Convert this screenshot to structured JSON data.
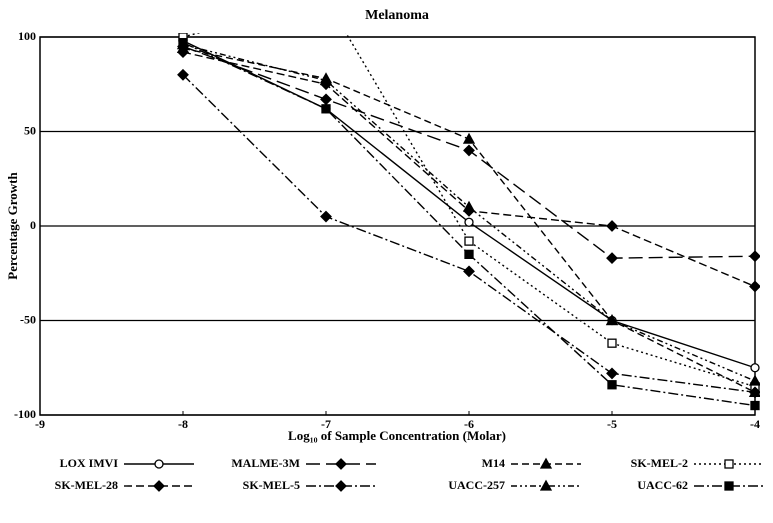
{
  "chart_data": {
    "type": "line",
    "title": "Melanoma",
    "xlabel": "Log₁₀ of Sample Concentration (Molar)",
    "ylabel": "Percentage Growth",
    "x": [
      -8,
      -7,
      -6,
      -5,
      -4
    ],
    "xlim": [
      -9,
      -4
    ],
    "xticks": [
      -9,
      -8,
      -7,
      -6,
      -5,
      -4
    ],
    "ylim": [
      -100,
      100
    ],
    "yticks": [
      -100,
      -50,
      0,
      50,
      100
    ],
    "grid": true,
    "series": [
      {
        "name": "LOX IMVI",
        "color": "#000000",
        "values": [
          98,
          62,
          2,
          -50,
          -75
        ]
      },
      {
        "name": "MALME-3M",
        "color": "#000000",
        "values": [
          95,
          67,
          40,
          -17,
          -16
        ]
      },
      {
        "name": "M14",
        "color": "#000000",
        "values": [
          94,
          78,
          46,
          -50,
          -88
        ]
      },
      {
        "name": "SK-MEL-2",
        "color": "#000000",
        "values": [
          100,
          120,
          -8,
          -62,
          -85
        ]
      },
      {
        "name": "SK-MEL-28",
        "color": "#000000",
        "values": [
          92,
          75,
          8,
          0,
          -32
        ]
      },
      {
        "name": "SK-MEL-5",
        "color": "#000000",
        "values": [
          80,
          5,
          -24,
          -78,
          -88
        ]
      },
      {
        "name": "UACC-257",
        "color": "#000000",
        "values": [
          96,
          77,
          10,
          -50,
          -82
        ]
      },
      {
        "name": "UACC-62",
        "color": "#000000",
        "values": [
          97,
          62,
          -15,
          -84,
          -95
        ]
      }
    ]
  }
}
